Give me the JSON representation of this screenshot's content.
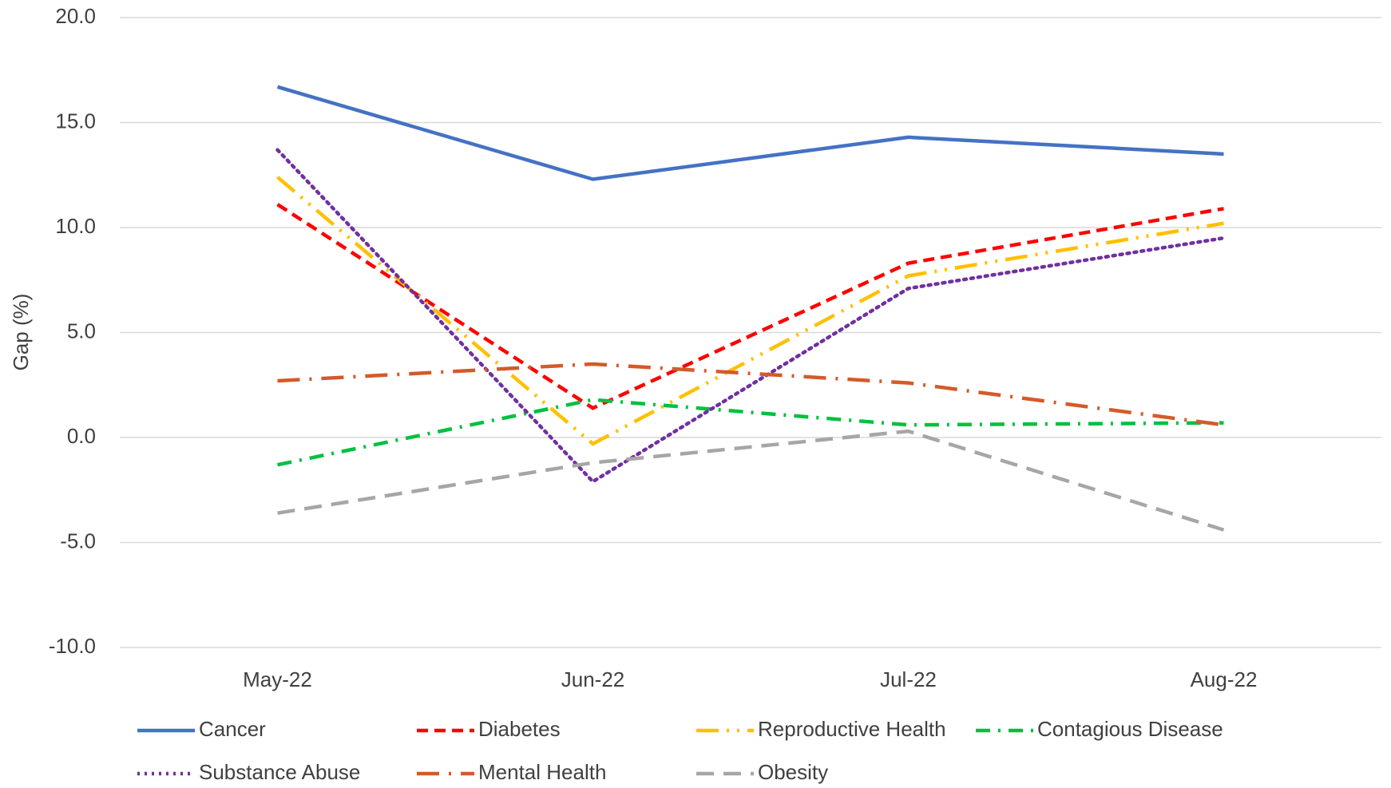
{
  "chart_data": {
    "type": "line",
    "y_label": "Gap (%)",
    "categories": [
      "May-22",
      "Jun-22",
      "Jul-22",
      "Aug-22"
    ],
    "ylim": [
      -10,
      20
    ],
    "yticks": [
      {
        "value": -10,
        "label": "-10.0"
      },
      {
        "value": -5,
        "label": "-5.0"
      },
      {
        "value": 0,
        "label": "0.0"
      },
      {
        "value": 5,
        "label": "5.0"
      },
      {
        "value": 10,
        "label": "10.0"
      },
      {
        "value": 15,
        "label": "15.0"
      },
      {
        "value": 20,
        "label": "20.0"
      }
    ],
    "grid": true,
    "legend": "bottom",
    "series": [
      {
        "name": "Cancer",
        "color": "#4472c4",
        "style": "solid",
        "values": [
          16.7,
          12.3,
          14.3,
          13.5
        ]
      },
      {
        "name": "Diabetes",
        "color": "#ff0000",
        "style": "dash",
        "values": [
          11.1,
          1.4,
          8.3,
          10.9
        ]
      },
      {
        "name": "Reproductive Health",
        "color": "#ffc000",
        "style": "long-dash-dot-dot",
        "values": [
          12.4,
          -0.3,
          7.7,
          10.2
        ]
      },
      {
        "name": "Contagious Disease",
        "color": "#00c040",
        "style": "dash-dot",
        "values": [
          -1.3,
          1.8,
          0.6,
          0.7
        ]
      },
      {
        "name": "Substance Abuse",
        "color": "#7030a0",
        "style": "dot",
        "values": [
          13.7,
          -2.1,
          7.1,
          9.5
        ]
      },
      {
        "name": "Mental Health",
        "color": "#d45a2a",
        "style": "long-dash-dot",
        "values": [
          2.7,
          3.5,
          2.6,
          0.6
        ]
      },
      {
        "name": "Obesity",
        "color": "#a6a6a6",
        "style": "long-dash",
        "values": [
          -3.6,
          -1.2,
          0.3,
          -4.4
        ]
      }
    ]
  }
}
